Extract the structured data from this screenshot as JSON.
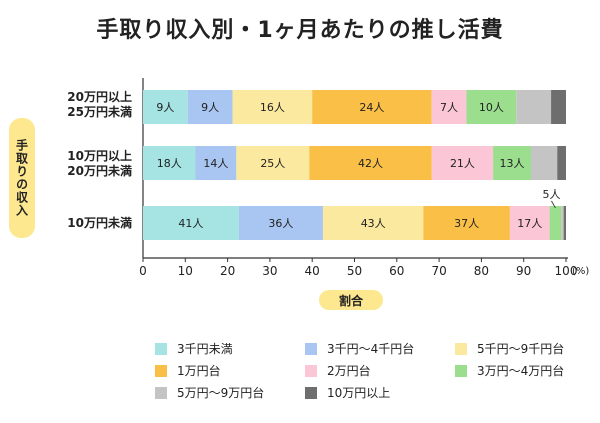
{
  "chart_data": {
    "type": "bar",
    "orientation": "horizontal",
    "stacked": true,
    "title": "手取り収入別・1ヶ月あたりの推し活費",
    "ylabel": "手取りの収入",
    "xlabel": "割合",
    "xlim": [
      0,
      100
    ],
    "x_ticks": [
      "0",
      "10",
      "20",
      "30",
      "40",
      "50",
      "60",
      "70",
      "80",
      "90",
      "100"
    ],
    "x_unit": "(%)",
    "categories": [
      {
        "line1": "20万円以上",
        "line2": "25万円未満"
      },
      {
        "line1": "10万円以上",
        "line2": "20万円未満"
      },
      {
        "line1": "10万円未満",
        "line2": ""
      }
    ],
    "series": [
      {
        "name": "3千円未満",
        "color": "#a6e3e3",
        "counts": [
          9,
          18,
          41
        ],
        "labels": [
          "9人",
          "18人",
          "41人"
        ]
      },
      {
        "name": "3千円～4千円台",
        "color": "#a9c6f2",
        "counts": [
          9,
          14,
          36
        ],
        "labels": [
          "9人",
          "14人",
          "36人"
        ]
      },
      {
        "name": "5千円～9千円台",
        "color": "#fbe9a0",
        "counts": [
          16,
          25,
          43
        ],
        "labels": [
          "16人",
          "25人",
          "43人"
        ]
      },
      {
        "name": "1万円台",
        "color": "#f9bf47",
        "counts": [
          24,
          42,
          37
        ],
        "labels": [
          "24人",
          "42人",
          "37人"
        ]
      },
      {
        "name": "2万円台",
        "color": "#fbc6d6",
        "counts": [
          7,
          21,
          17
        ],
        "labels": [
          "7人",
          "21人",
          "17人"
        ]
      },
      {
        "name": "3万円～4万円台",
        "color": "#9bde8e",
        "counts": [
          10,
          13,
          5
        ],
        "labels": [
          "10人",
          "13人",
          "5人"
        ]
      },
      {
        "name": "5万円～9万円台",
        "color": "#c4c4c4",
        "counts": [
          7,
          9,
          1
        ],
        "labels": [
          "",
          "",
          ""
        ]
      },
      {
        "name": "10万円以上",
        "color": "#6e6e6e",
        "counts": [
          3,
          3,
          1
        ],
        "labels": [
          "",
          "",
          ""
        ]
      }
    ]
  }
}
